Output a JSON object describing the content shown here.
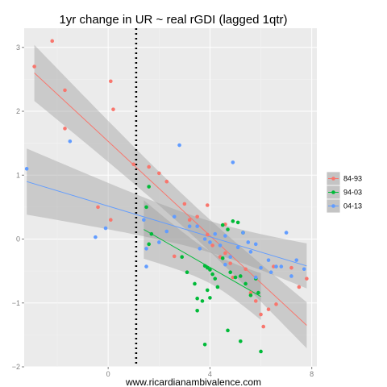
{
  "chart_data": {
    "type": "scatter",
    "title": "1yr change in UR ~ real rGDI (lagged 1qtr)",
    "caption": "www.ricardianambivalence.com",
    "xlabel": "",
    "ylabel": "",
    "xlim": [
      -3.3,
      8.2
    ],
    "ylim": [
      -2.0,
      3.3
    ],
    "x_ticks": [
      0,
      4,
      8
    ],
    "y_ticks": [
      -2,
      -1,
      0,
      1,
      2,
      3
    ],
    "x_tick_labels": [
      "0",
      "4",
      "8"
    ],
    "y_tick_labels": [
      "−2",
      "−1",
      "0",
      "1",
      "2",
      "3"
    ],
    "grid": true,
    "vertical_reference_line": 1.1,
    "legend_position": "right",
    "series": [
      {
        "name": "84-93",
        "color": "#F8766D",
        "points": [
          [
            -2.2,
            3.1
          ],
          [
            -2.9,
            2.7
          ],
          [
            -1.7,
            2.33
          ],
          [
            -1.7,
            1.73
          ],
          [
            0.1,
            2.47
          ],
          [
            0.2,
            2.03
          ],
          [
            1.0,
            1.17
          ],
          [
            1.6,
            1.13
          ],
          [
            2.0,
            1.03
          ],
          [
            2.3,
            0.9
          ],
          [
            -0.4,
            0.5
          ],
          [
            0.1,
            0.3
          ],
          [
            3.0,
            0.55
          ],
          [
            3.2,
            0.3
          ],
          [
            3.5,
            0.35
          ],
          [
            3.9,
            0.53
          ],
          [
            2.6,
            -0.27
          ],
          [
            3.9,
            0.07
          ],
          [
            4.1,
            -0.1
          ],
          [
            4.4,
            -0.28
          ],
          [
            4.6,
            -0.22
          ],
          [
            4.8,
            -0.38
          ],
          [
            4.9,
            -0.6
          ],
          [
            5.4,
            -0.47
          ],
          [
            5.6,
            -0.84
          ],
          [
            5.8,
            -0.97
          ],
          [
            6.0,
            -1.18
          ],
          [
            6.3,
            -1.1
          ],
          [
            6.6,
            -1.02
          ],
          [
            6.1,
            -1.37
          ],
          [
            6.5,
            -0.43
          ],
          [
            7.2,
            -0.45
          ],
          [
            7.5,
            -0.75
          ],
          [
            7.8,
            -0.62
          ],
          [
            5.3,
            0.1
          ],
          [
            4.6,
            0.23
          ]
        ],
        "fit": {
          "x0": -2.9,
          "y0": 2.6,
          "x1": 7.8,
          "y1": -1.35
        }
      },
      {
        "name": "94-03",
        "color": "#00BA38",
        "points": [
          [
            1.6,
            0.82
          ],
          [
            1.5,
            0.5
          ],
          [
            1.7,
            0.08
          ],
          [
            1.6,
            -0.08
          ],
          [
            2.9,
            -0.28
          ],
          [
            3.1,
            -0.52
          ],
          [
            3.4,
            -0.7
          ],
          [
            3.5,
            -0.93
          ],
          [
            3.8,
            -0.42
          ],
          [
            3.9,
            -0.8
          ],
          [
            4.0,
            -0.48
          ],
          [
            4.1,
            -0.55
          ],
          [
            4.2,
            -0.62
          ],
          [
            4.3,
            -0.75
          ],
          [
            4.0,
            -0.92
          ],
          [
            3.7,
            -0.97
          ],
          [
            3.5,
            -1.12
          ],
          [
            4.5,
            0.22
          ],
          [
            4.7,
            0.15
          ],
          [
            4.9,
            0.28
          ],
          [
            5.1,
            0.26
          ],
          [
            5.3,
            0.1
          ],
          [
            4.8,
            -0.52
          ],
          [
            5.0,
            -0.6
          ],
          [
            5.2,
            -0.58
          ],
          [
            5.4,
            -0.7
          ],
          [
            5.6,
            -0.88
          ],
          [
            5.8,
            -0.62
          ],
          [
            4.7,
            -1.43
          ],
          [
            5.2,
            -1.6
          ],
          [
            6.0,
            -1.76
          ],
          [
            3.8,
            -1.65
          ],
          [
            5.9,
            -0.84
          ],
          [
            4.5,
            -0.3
          ],
          [
            3.9,
            -0.45
          ]
        ],
        "fit": {
          "x0": 1.4,
          "y0": 0.15,
          "x1": 6.0,
          "y1": -0.9
        }
      },
      {
        "name": "04-13",
        "color": "#619CFF",
        "points": [
          [
            -3.2,
            1.1
          ],
          [
            -1.5,
            1.53
          ],
          [
            -0.5,
            0.03
          ],
          [
            -0.1,
            0.17
          ],
          [
            1.4,
            0.3
          ],
          [
            1.5,
            -0.43
          ],
          [
            1.5,
            -0.15
          ],
          [
            2.0,
            -0.05
          ],
          [
            2.3,
            0.12
          ],
          [
            2.6,
            0.35
          ],
          [
            2.8,
            1.47
          ],
          [
            3.2,
            0.2
          ],
          [
            3.5,
            0.2
          ],
          [
            3.6,
            -0.15
          ],
          [
            3.8,
            0.0
          ],
          [
            4.0,
            -0.05
          ],
          [
            4.2,
            0.08
          ],
          [
            4.4,
            -0.1
          ],
          [
            4.6,
            0.05
          ],
          [
            4.8,
            -0.28
          ],
          [
            4.9,
            1.2
          ],
          [
            5.1,
            -0.13
          ],
          [
            5.3,
            0.1
          ],
          [
            5.5,
            -0.05
          ],
          [
            5.6,
            -0.2
          ],
          [
            5.8,
            -0.08
          ],
          [
            6.0,
            -0.45
          ],
          [
            6.3,
            -0.33
          ],
          [
            6.4,
            -0.52
          ],
          [
            6.6,
            -0.43
          ],
          [
            6.8,
            -0.43
          ],
          [
            7.0,
            0.1
          ],
          [
            7.2,
            -0.58
          ],
          [
            7.4,
            -0.33
          ],
          [
            7.7,
            -0.47
          ],
          [
            5.8,
            -0.6
          ],
          [
            4.6,
            -0.4
          ]
        ],
        "fit": {
          "x0": -3.2,
          "y0": 0.9,
          "x1": 7.8,
          "y1": -0.42
        }
      }
    ]
  }
}
